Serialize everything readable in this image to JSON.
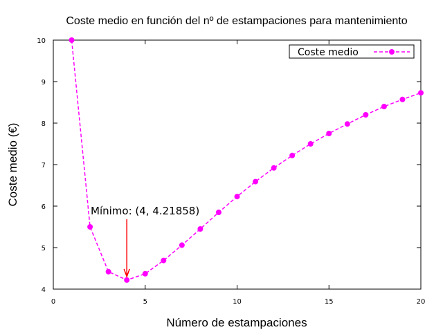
{
  "chart_data": {
    "type": "line",
    "title": "Coste medio en función del nº de estampaciones para mantenimiento",
    "xlabel": "Número de estampaciones",
    "ylabel": "Coste medio (€)",
    "xlim": [
      0,
      20
    ],
    "ylim": [
      4,
      10
    ],
    "xticks": [
      "0",
      "5",
      "10",
      "15",
      "20"
    ],
    "yticks": [
      "4",
      "5",
      "6",
      "7",
      "8",
      "9",
      "10"
    ],
    "grid": false,
    "legend_position": "top-right",
    "series": [
      {
        "name": "Coste medio",
        "color": "#ff00ff",
        "line_style": "dashed",
        "marker": "circle",
        "x": [
          1,
          2,
          3,
          4,
          5,
          6,
          7,
          8,
          9,
          10,
          11,
          12,
          13,
          14,
          15,
          16,
          17,
          18,
          19,
          20
        ],
        "y": [
          10.0,
          5.5,
          4.42,
          4.21858,
          4.37,
          4.69,
          5.06,
          5.45,
          5.85,
          6.23,
          6.59,
          6.92,
          7.22,
          7.5,
          7.75,
          7.98,
          8.2,
          8.4,
          8.57,
          8.73
        ]
      }
    ],
    "annotation": {
      "text": "Mínimo: (4, 4.21858)",
      "x": 4,
      "y": 4.21858,
      "arrow_color": "#ff0000"
    }
  }
}
